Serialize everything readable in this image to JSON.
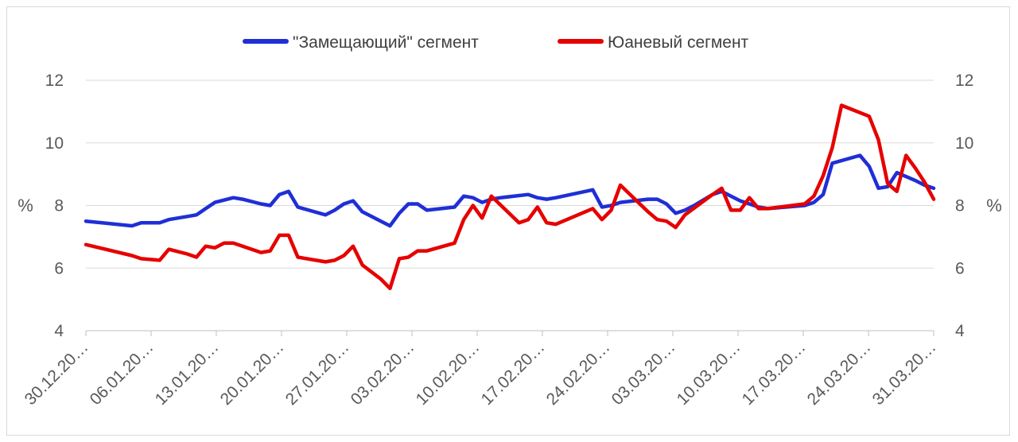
{
  "chart_data": {
    "type": "line",
    "ylabel_left": "%",
    "ylabel_right": "%",
    "ylim": [
      4,
      12
    ],
    "yticks": [
      "4",
      "6",
      "8",
      "10",
      "12"
    ],
    "grid": true,
    "legend_position": "top-center",
    "categories": [
      "30.12.20…",
      "06.01.20…",
      "13.01.20…",
      "20.01.20…",
      "27.01.20…",
      "03.02.20…",
      "10.02.20…",
      "17.02.20…",
      "24.02.20…",
      "03.03.20…",
      "10.03.20…",
      "17.03.20…",
      "24.03.20…",
      "31.03.20…"
    ],
    "series": [
      {
        "name": "\"Замещающий\" сегмент",
        "color": "#1f2fd6",
        "points": [
          [
            0,
            7.5
          ],
          [
            5,
            7.35
          ],
          [
            6,
            7.45
          ],
          [
            8,
            7.45
          ],
          [
            9,
            7.55
          ],
          [
            11,
            7.65
          ],
          [
            12,
            7.7
          ],
          [
            13,
            7.9
          ],
          [
            14,
            8.1
          ],
          [
            16,
            8.25
          ],
          [
            17,
            8.2
          ],
          [
            19,
            8.05
          ],
          [
            20,
            8.0
          ],
          [
            21,
            8.35
          ],
          [
            22,
            8.45
          ],
          [
            23,
            7.95
          ],
          [
            26,
            7.7
          ],
          [
            27,
            7.85
          ],
          [
            28,
            8.05
          ],
          [
            29,
            8.15
          ],
          [
            30,
            7.8
          ],
          [
            31,
            7.65
          ],
          [
            32,
            7.5
          ],
          [
            33,
            7.35
          ],
          [
            34,
            7.75
          ],
          [
            35,
            8.05
          ],
          [
            36,
            8.05
          ],
          [
            37,
            7.85
          ],
          [
            40,
            7.95
          ],
          [
            41,
            8.3
          ],
          [
            42,
            8.25
          ],
          [
            43,
            8.1
          ],
          [
            44,
            8.2
          ],
          [
            45,
            8.25
          ],
          [
            48,
            8.35
          ],
          [
            49,
            8.25
          ],
          [
            50,
            8.2
          ],
          [
            51,
            8.25
          ],
          [
            55,
            8.5
          ],
          [
            56,
            7.95
          ],
          [
            57,
            8.0
          ],
          [
            58,
            8.1
          ],
          [
            61,
            8.2
          ],
          [
            62,
            8.2
          ],
          [
            63,
            8.05
          ],
          [
            64,
            7.75
          ],
          [
            65,
            7.85
          ],
          [
            66,
            8.0
          ],
          [
            68,
            8.35
          ],
          [
            69,
            8.45
          ],
          [
            70,
            8.3
          ],
          [
            71,
            8.15
          ],
          [
            72,
            8.05
          ],
          [
            73,
            7.95
          ],
          [
            74,
            7.9
          ],
          [
            78,
            8.0
          ],
          [
            79,
            8.1
          ],
          [
            80,
            8.35
          ],
          [
            81,
            9.35
          ],
          [
            84,
            9.6
          ],
          [
            85,
            9.25
          ],
          [
            86,
            8.55
          ],
          [
            87,
            8.6
          ],
          [
            88,
            9.05
          ],
          [
            90,
            8.8
          ],
          [
            91,
            8.65
          ],
          [
            92,
            8.55
          ]
        ]
      },
      {
        "name": "Юаневый сегмент",
        "color": "#e60000",
        "points": [
          [
            0,
            6.75
          ],
          [
            5,
            6.4
          ],
          [
            6,
            6.3
          ],
          [
            8,
            6.25
          ],
          [
            9,
            6.6
          ],
          [
            11,
            6.45
          ],
          [
            12,
            6.35
          ],
          [
            13,
            6.7
          ],
          [
            14,
            6.65
          ],
          [
            15,
            6.8
          ],
          [
            16,
            6.8
          ],
          [
            19,
            6.5
          ],
          [
            20,
            6.55
          ],
          [
            21,
            7.05
          ],
          [
            22,
            7.05
          ],
          [
            23,
            6.35
          ],
          [
            26,
            6.2
          ],
          [
            27,
            6.25
          ],
          [
            28,
            6.4
          ],
          [
            29,
            6.7
          ],
          [
            30,
            6.1
          ],
          [
            32,
            5.65
          ],
          [
            33,
            5.35
          ],
          [
            34,
            6.3
          ],
          [
            35,
            6.35
          ],
          [
            36,
            6.55
          ],
          [
            37,
            6.55
          ],
          [
            40,
            6.8
          ],
          [
            41,
            7.55
          ],
          [
            42,
            8.0
          ],
          [
            43,
            7.6
          ],
          [
            44,
            8.3
          ],
          [
            47,
            7.45
          ],
          [
            48,
            7.55
          ],
          [
            49,
            7.95
          ],
          [
            50,
            7.45
          ],
          [
            51,
            7.4
          ],
          [
            55,
            7.9
          ],
          [
            56,
            7.55
          ],
          [
            57,
            7.85
          ],
          [
            58,
            8.65
          ],
          [
            61,
            7.8
          ],
          [
            62,
            7.55
          ],
          [
            63,
            7.5
          ],
          [
            64,
            7.3
          ],
          [
            65,
            7.7
          ],
          [
            68,
            8.35
          ],
          [
            69,
            8.55
          ],
          [
            70,
            7.85
          ],
          [
            71,
            7.85
          ],
          [
            72,
            8.25
          ],
          [
            73,
            7.9
          ],
          [
            74,
            7.9
          ],
          [
            78,
            8.05
          ],
          [
            79,
            8.3
          ],
          [
            80,
            8.95
          ],
          [
            81,
            9.85
          ],
          [
            82,
            11.2
          ],
          [
            85,
            10.85
          ],
          [
            86,
            10.1
          ],
          [
            87,
            8.7
          ],
          [
            88,
            8.45
          ],
          [
            89,
            9.6
          ],
          [
            90,
            9.2
          ],
          [
            91,
            8.75
          ],
          [
            92,
            8.2
          ]
        ]
      }
    ]
  }
}
